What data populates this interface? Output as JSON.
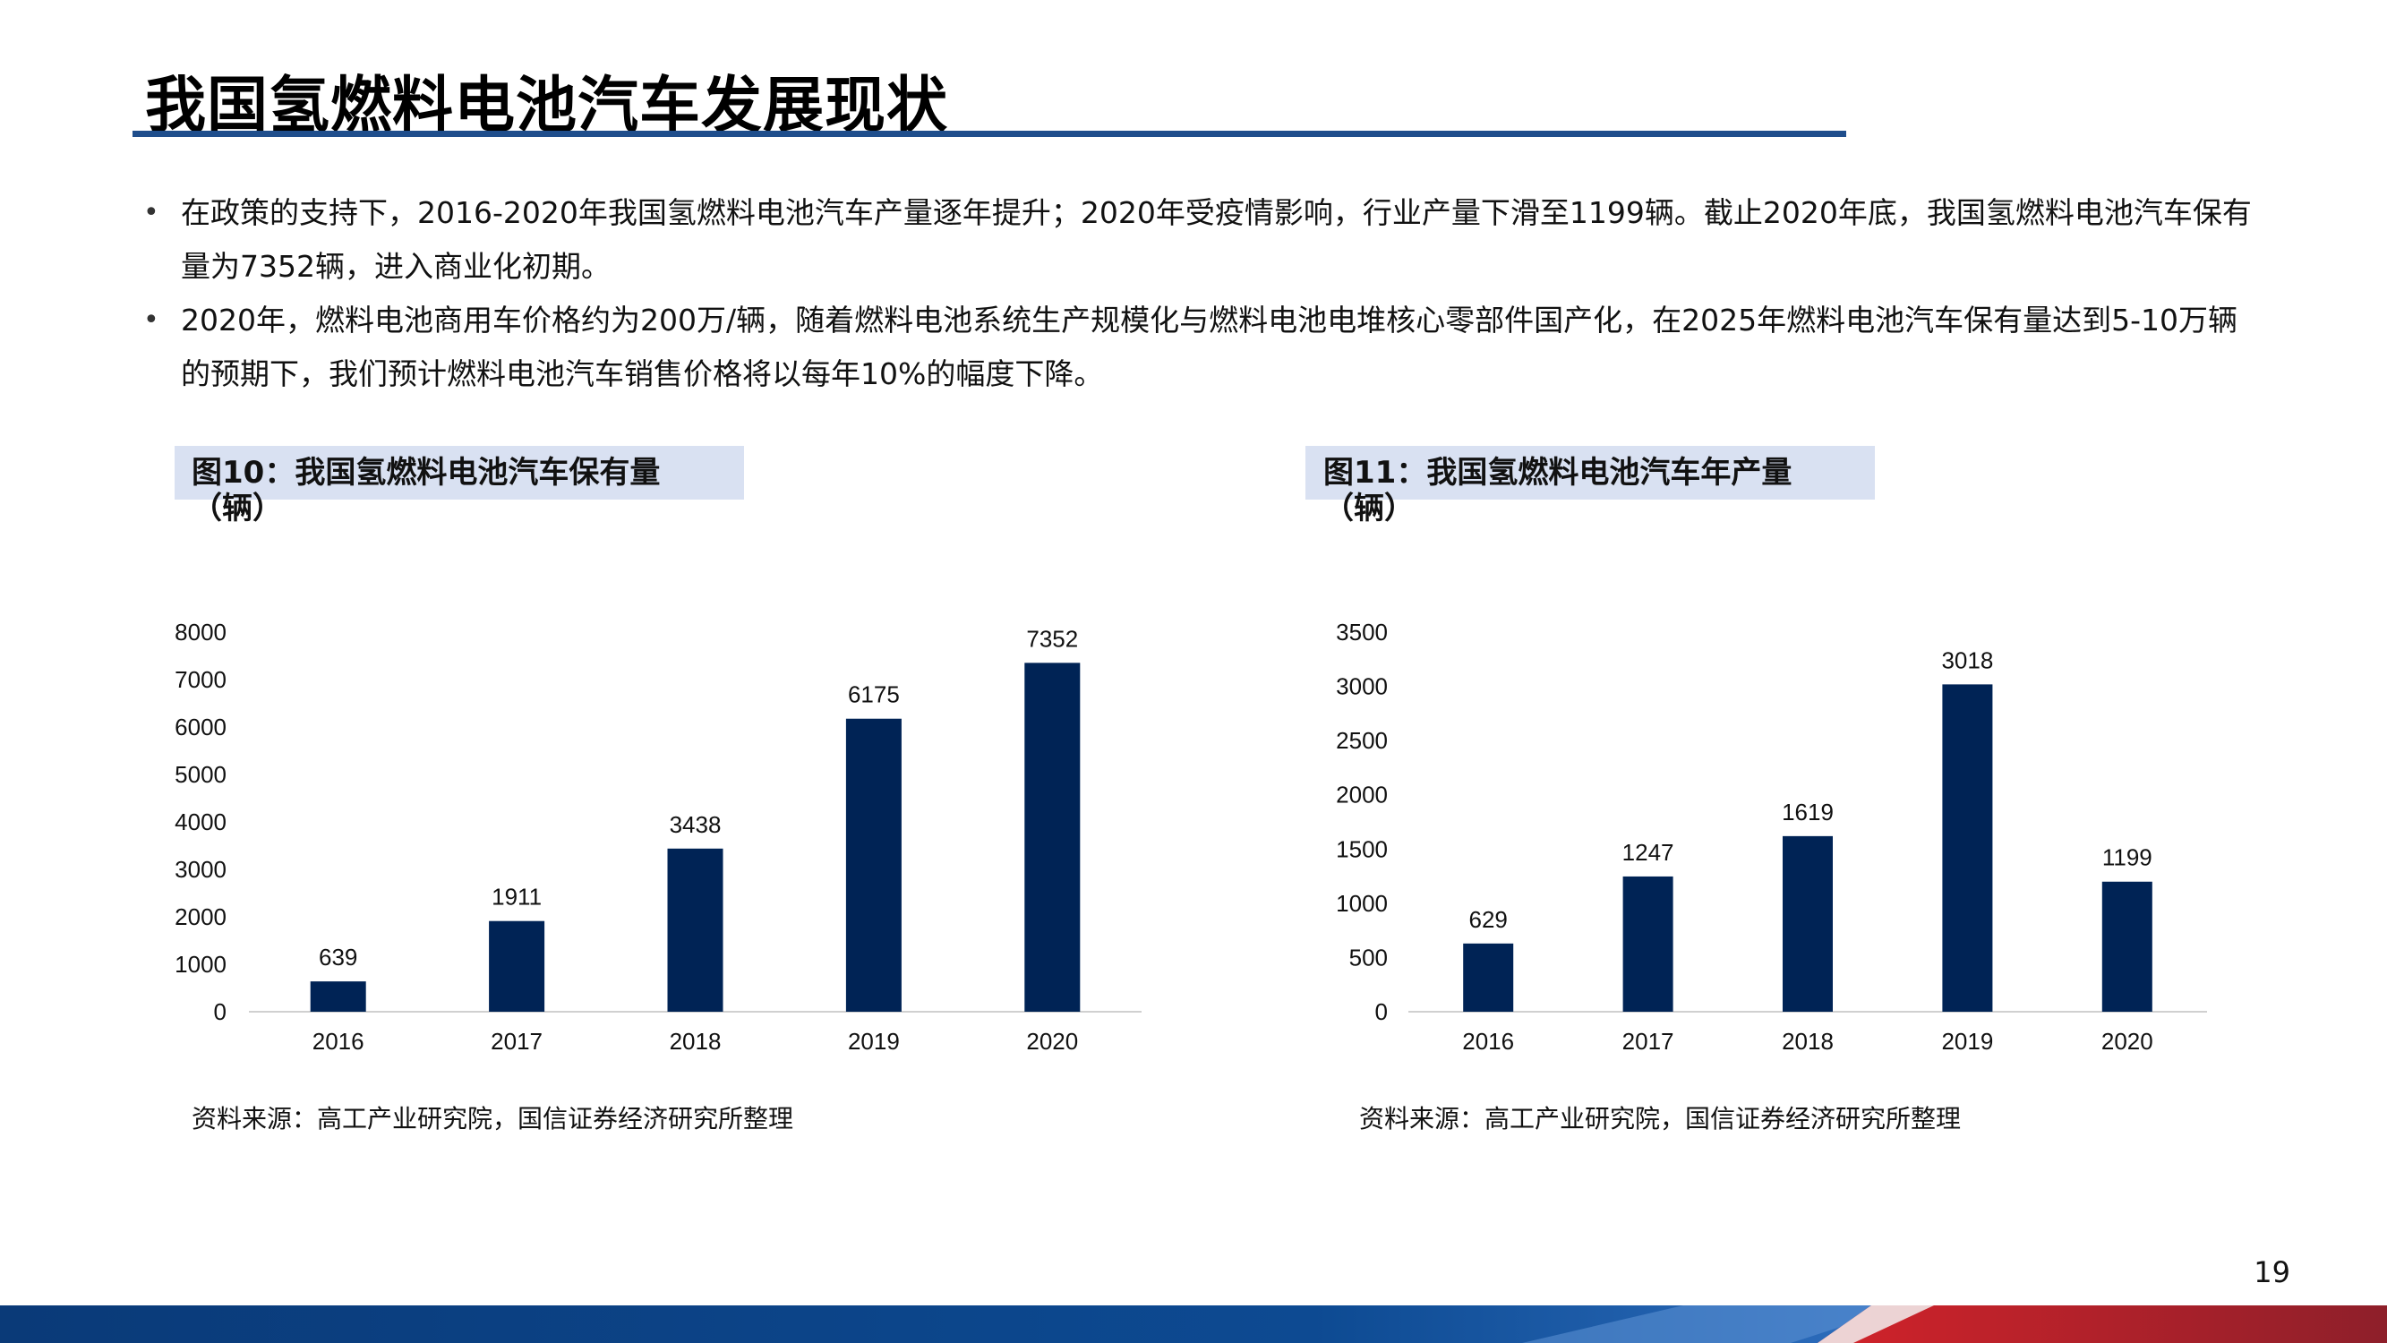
{
  "title": "我国氢燃料电池汽车发展现状",
  "bullets": [
    {
      "dot": "•",
      "line1": "在政策的支持下，2016-2020年我国氢燃料电池汽车产量逐年提升；2020年受疫情影响，行业产量下滑至1199辆。截止2020年底，我国氢燃料电池汽车保有",
      "line2": "量为7352辆，进入商业化初期。"
    },
    {
      "dot": "•",
      "line1": "2020年，燃料电池商用车价格约为200万/辆，随着燃料电池系统生产规模化与燃料电池电堆核心零部件国产化，在2025年燃料电池汽车保有量达到5-10万辆",
      "line2": "的预期下，我们预计燃料电池汽车销售价格将以每年10%的幅度下降。"
    }
  ],
  "figures": [
    {
      "title_line1": "图10：我国氢燃料电池汽车保有量",
      "title_line2": "（辆）",
      "source": "资料来源：高工产业研究院，国信证券经济研究所整理"
    },
    {
      "title_line1": "图11：我国氢燃料电池汽车年产量",
      "title_line2": "（辆）",
      "source": "资料来源：高工产业研究院，国信证券经济研究所整理"
    }
  ],
  "chart_data": [
    {
      "type": "bar",
      "categories": [
        "2016",
        "2017",
        "2018",
        "2019",
        "2020"
      ],
      "values": [
        639,
        1911,
        3438,
        6175,
        7352
      ],
      "ylim": [
        0,
        8000
      ],
      "yticks": [
        0,
        1000,
        2000,
        3000,
        4000,
        5000,
        6000,
        7000,
        8000
      ],
      "grid": false,
      "legend": "none",
      "bar_color": "#002355"
    },
    {
      "type": "bar",
      "categories": [
        "2016",
        "2017",
        "2018",
        "2019",
        "2020"
      ],
      "values": [
        629,
        1247,
        1619,
        3018,
        1199
      ],
      "ylim": [
        0,
        3500
      ],
      "yticks": [
        0,
        500,
        1000,
        1500,
        2000,
        2500,
        3000,
        3500
      ],
      "grid": false,
      "legend": "none",
      "bar_color": "#002355"
    }
  ],
  "page_number": "19",
  "colors": {
    "accent_rule": "#1f4e8c",
    "label_bg": "#d9e1f2",
    "bar": "#002355",
    "footer_blue": "#0b3f80",
    "footer_red": "#c0282d"
  }
}
